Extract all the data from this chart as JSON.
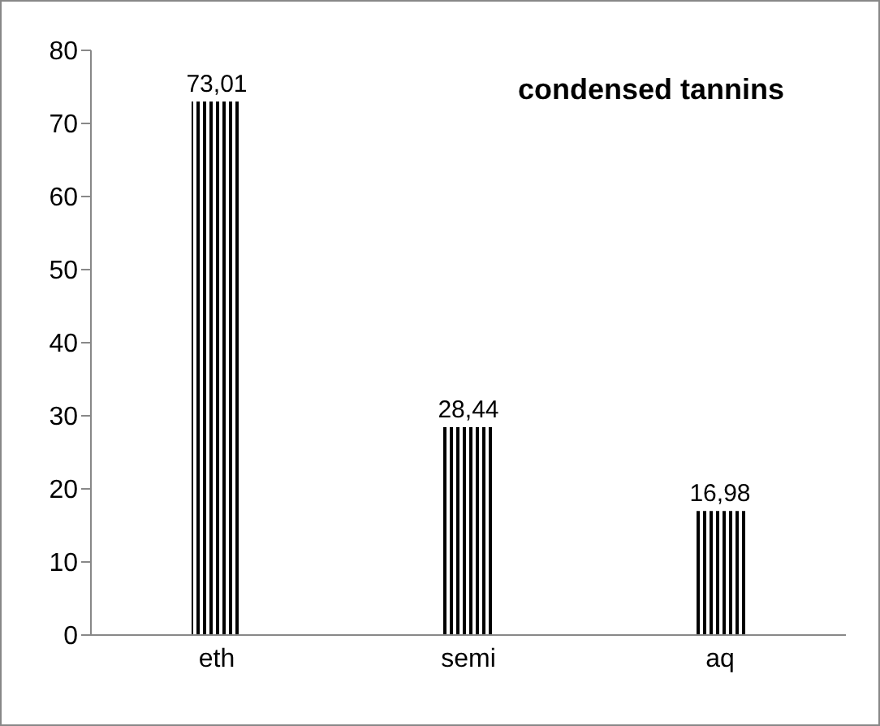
{
  "chart_data": {
    "type": "bar",
    "title": "condensed tannins",
    "categories": [
      "eth",
      "semi",
      "aq"
    ],
    "values": [
      73.01,
      28.44,
      16.98
    ],
    "value_labels": [
      "73,01",
      "28,44",
      "16,98"
    ],
    "color": "#000000",
    "ylim": [
      0,
      80
    ],
    "yticks": [
      0,
      10,
      20,
      30,
      40,
      50,
      60,
      70,
      80
    ],
    "grid": false,
    "legend": false
  }
}
